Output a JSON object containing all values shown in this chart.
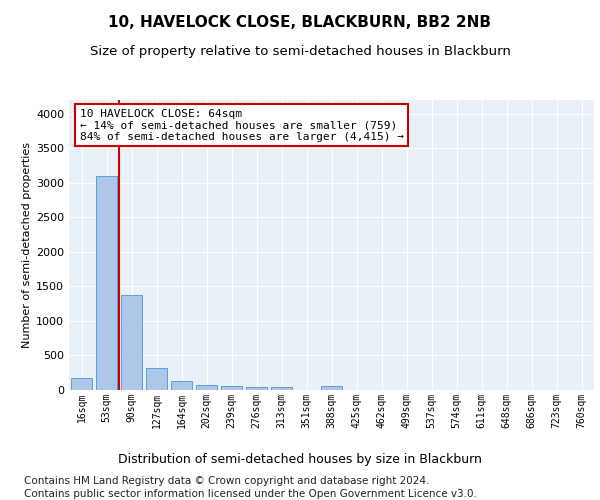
{
  "title": "10, HAVELOCK CLOSE, BLACKBURN, BB2 2NB",
  "subtitle": "Size of property relative to semi-detached houses in Blackburn",
  "xlabel": "Distribution of semi-detached houses by size in Blackburn",
  "ylabel": "Number of semi-detached properties",
  "footnote1": "Contains HM Land Registry data © Crown copyright and database right 2024.",
  "footnote2": "Contains public sector information licensed under the Open Government Licence v3.0.",
  "annotation_line1": "10 HAVELOCK CLOSE: 64sqm",
  "annotation_line2": "← 14% of semi-detached houses are smaller (759)",
  "annotation_line3": "84% of semi-detached houses are larger (4,415) →",
  "bar_labels": [
    "16sqm",
    "53sqm",
    "90sqm",
    "127sqm",
    "164sqm",
    "202sqm",
    "239sqm",
    "276sqm",
    "313sqm",
    "351sqm",
    "388sqm",
    "425sqm",
    "462sqm",
    "499sqm",
    "537sqm",
    "574sqm",
    "611sqm",
    "648sqm",
    "686sqm",
    "723sqm",
    "760sqm"
  ],
  "bar_values": [
    175,
    3100,
    1380,
    315,
    130,
    70,
    55,
    45,
    40,
    5,
    60,
    5,
    0,
    0,
    0,
    0,
    0,
    0,
    0,
    0,
    0
  ],
  "bar_color": "#aec6e8",
  "bar_edge_color": "#5a9fd4",
  "property_line_x": 1.5,
  "ylim": [
    0,
    4200
  ],
  "yticks": [
    0,
    500,
    1000,
    1500,
    2000,
    2500,
    3000,
    3500,
    4000
  ],
  "plot_bg_color": "#e8f0f8",
  "annotation_box_color": "#cc0000",
  "title_fontsize": 11,
  "subtitle_fontsize": 9.5,
  "ylabel_fontsize": 8,
  "xlabel_fontsize": 9,
  "footnote_fontsize": 7.5,
  "tick_fontsize": 8,
  "xtick_fontsize": 7
}
